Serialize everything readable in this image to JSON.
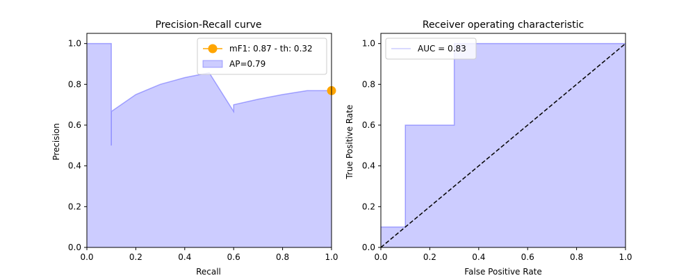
{
  "chart_data": [
    {
      "type": "area",
      "title": "Precision-Recall curve",
      "xlabel": "Recall",
      "ylabel": "Precision",
      "xlim": [
        0,
        1
      ],
      "ylim": [
        0,
        1.05
      ],
      "xticks": [
        "0.0",
        "0.2",
        "0.4",
        "0.6",
        "0.8",
        "1.0"
      ],
      "yticks": [
        "0.0",
        "0.2",
        "0.4",
        "0.6",
        "0.8",
        "1.0"
      ],
      "grid": false,
      "legend_position": "top-right",
      "colors": {
        "curve": "#0000ff",
        "fill": "#ccccff",
        "marker": "#ffa500"
      },
      "series": [
        {
          "name": "AP=0.79",
          "kind": "step",
          "x": [
            0.0,
            0.1,
            0.1,
            0.1,
            0.2,
            0.3,
            0.4,
            0.5,
            0.6,
            0.6,
            0.7,
            0.8,
            0.9,
            1.0
          ],
          "y": [
            1.0,
            1.0,
            0.5,
            0.667,
            0.75,
            0.8,
            0.833,
            0.857,
            0.667,
            0.7,
            0.727,
            0.75,
            0.769,
            0.769
          ]
        },
        {
          "name": "mF1: 0.87 - th: 0.32",
          "kind": "point",
          "x": [
            1.0
          ],
          "y": [
            0.769
          ]
        }
      ]
    },
    {
      "type": "area",
      "title": "Receiver operating characteristic",
      "xlabel": "False Positive Rate",
      "ylabel": "True Positive Rate",
      "xlim": [
        0,
        1
      ],
      "ylim": [
        0,
        1.05
      ],
      "xticks": [
        "0.0",
        "0.2",
        "0.4",
        "0.6",
        "0.8",
        "1.0"
      ],
      "yticks": [
        "0.0",
        "0.2",
        "0.4",
        "0.6",
        "0.8",
        "1.0"
      ],
      "grid": false,
      "legend_position": "top-left",
      "colors": {
        "curve": "#0000ff",
        "fill": "#ccccff",
        "diagonal": "#000000"
      },
      "series": [
        {
          "name": "AUC = 0.83",
          "kind": "step",
          "x": [
            0.0,
            0.1,
            0.1,
            0.3,
            0.3,
            1.0
          ],
          "y": [
            0.1,
            0.1,
            0.6,
            0.6,
            1.0,
            1.0
          ]
        },
        {
          "kind": "dashed-diagonal",
          "x": [
            0.0,
            1.0
          ],
          "y": [
            0.0,
            1.0
          ]
        }
      ]
    }
  ]
}
